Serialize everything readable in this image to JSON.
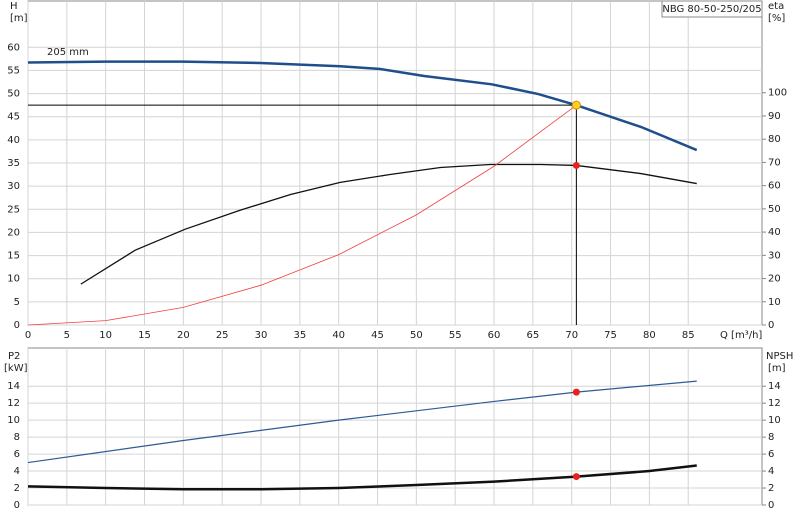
{
  "chart_data": [
    {
      "type": "line",
      "title": "NBG 80-50-250/205",
      "curve_label": "205 mm",
      "y_label": "H",
      "y_unit": "[m]",
      "y2_label": "eta",
      "y2_unit": "[%]",
      "x_label": "Q [m³/h]",
      "xlim": [
        0,
        94.5
      ],
      "xticks": [
        0,
        5,
        10,
        15,
        20,
        25,
        30,
        35,
        40,
        45,
        50,
        55,
        60,
        65,
        70,
        75,
        80,
        85
      ],
      "ylim": [
        0,
        70
      ],
      "yticks": [
        0,
        5,
        10,
        15,
        20,
        25,
        30,
        35,
        40,
        45,
        50,
        55,
        60
      ],
      "y2lim": [
        0,
        139.5
      ],
      "y2ticks": [
        0,
        10,
        20,
        30,
        40,
        50,
        60,
        70,
        80,
        90,
        100
      ],
      "grid": true,
      "operating_point": {
        "q": 70.6,
        "h": 47.5,
        "color": "#ffd21f"
      },
      "series": [
        {
          "color": "#1f4e8c",
          "width": 2.5,
          "x": [
            0,
            10,
            20,
            29.9,
            40.2,
            45.4,
            51,
            59.7,
            65.7,
            70.6,
            78.9,
            86.1
          ],
          "values": [
            56.7,
            56.9,
            56.9,
            56.6,
            55.9,
            55.3,
            53.8,
            52.0,
            49.9,
            47.5,
            42.8,
            37.8
          ]
        },
        {
          "color": "#111111",
          "width": 1.3,
          "axis": "y2",
          "point_color": "#e82020",
          "x": [
            6.8,
            13.8,
            20.2,
            27.3,
            33.8,
            40.2,
            46.6,
            53.1,
            59.5,
            66,
            70.6,
            78.9,
            86.1
          ],
          "values": [
            17.6,
            32.2,
            41.2,
            49.4,
            56.2,
            61.4,
            64.8,
            67.8,
            69.1,
            69.1,
            68.7,
            65.2,
            60.9
          ]
        },
        {
          "color": "#f04040",
          "width": 0.8,
          "x": [
            0,
            10,
            20,
            30,
            40,
            50,
            60,
            70.6
          ],
          "values": [
            0,
            0.95,
            3.8,
            8.6,
            15.2,
            23.8,
            34.3,
            47.5
          ]
        }
      ]
    },
    {
      "type": "line",
      "y_label": "P2",
      "y_unit": "[kW]",
      "y2_label": "NPSH",
      "y2_unit": "[m]",
      "xlim": [
        0,
        94.5
      ],
      "ylim": [
        0,
        18.5
      ],
      "yticks": [
        0,
        2,
        4,
        6,
        8,
        10,
        12,
        14
      ],
      "y2lim": [
        0,
        18.5
      ],
      "y2ticks": [
        0,
        2,
        4,
        6,
        8,
        10,
        12,
        14
      ],
      "grid": true,
      "series": [
        {
          "color": "#2d5a96",
          "width": 1.2,
          "point_color": "#e82020",
          "x": [
            0,
            20,
            40,
            60,
            70.6,
            86.1
          ],
          "values": [
            5.0,
            7.6,
            10.0,
            12.2,
            13.3,
            14.6
          ]
        },
        {
          "color": "#111111",
          "width": 2.5,
          "axis": "y2",
          "point_color": "#e82020",
          "x": [
            0,
            10,
            20,
            30,
            40,
            50,
            60,
            70.6,
            80,
            86.1
          ],
          "values": [
            2.2,
            2.0,
            1.85,
            1.85,
            2.0,
            2.35,
            2.75,
            3.35,
            4.0,
            4.65
          ]
        }
      ]
    }
  ]
}
